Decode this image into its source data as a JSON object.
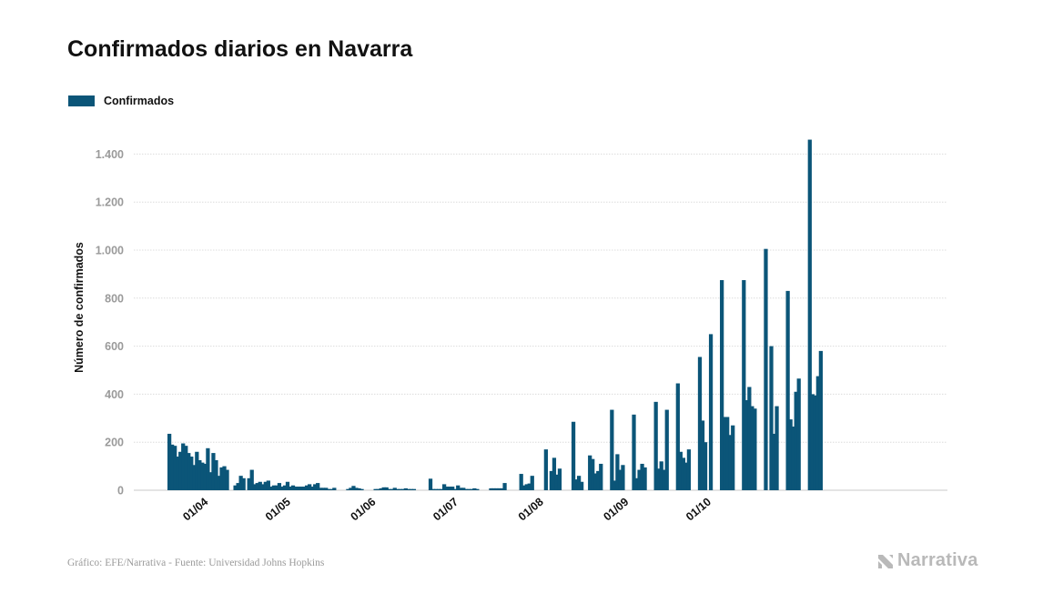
{
  "title": "Confirmados diarios en Navarra",
  "legend": {
    "label": "Confirmados",
    "color": "#0b5578"
  },
  "footer": {
    "source": "Gráfico: EFE/Narrativa - Fuente: Universidad Johns Hopkins",
    "brand": "Narrativa",
    "brand_icon": "narrativa-logo-icon"
  },
  "chart_data": {
    "type": "bar",
    "title": "Confirmados diarios en Navarra",
    "xlabel": "",
    "ylabel": "Número de confirmados",
    "ylim": [
      0,
      1500
    ],
    "yticks": [
      0,
      200,
      400,
      600,
      800,
      1000,
      1200,
      1400
    ],
    "ytick_labels": [
      "0",
      "200",
      "400",
      "600",
      "800",
      "1.000",
      "1.200",
      "1.400"
    ],
    "grid": true,
    "legend_position": "top-left",
    "start_date": "2020-03-19",
    "xticks": [
      {
        "label": "01/04",
        "date": "2020-04-01"
      },
      {
        "label": "01/05",
        "date": "2020-05-01"
      },
      {
        "label": "01/06",
        "date": "2020-06-01"
      },
      {
        "label": "01/07",
        "date": "2020-07-01"
      },
      {
        "label": "01/08",
        "date": "2020-08-01"
      },
      {
        "label": "01/09",
        "date": "2020-09-01"
      },
      {
        "label": "01/10",
        "date": "2020-10-01"
      }
    ],
    "series": [
      {
        "name": "Confirmados",
        "color": "#0b5578",
        "values": [
          235,
          190,
          185,
          140,
          160,
          195,
          185,
          155,
          140,
          105,
          160,
          125,
          115,
          110,
          175,
          75,
          155,
          125,
          60,
          95,
          100,
          85,
          0,
          0,
          20,
          30,
          60,
          50,
          0,
          50,
          85,
          25,
          30,
          35,
          25,
          35,
          40,
          15,
          20,
          20,
          30,
          15,
          20,
          35,
          15,
          20,
          15,
          15,
          15,
          15,
          20,
          25,
          15,
          25,
          30,
          10,
          10,
          10,
          5,
          5,
          10,
          0,
          0,
          0,
          0,
          5,
          10,
          18,
          10,
          8,
          5,
          0,
          0,
          0,
          0,
          5,
          5,
          8,
          12,
          12,
          5,
          5,
          10,
          5,
          5,
          5,
          8,
          5,
          5,
          5,
          0,
          0,
          0,
          0,
          0,
          48,
          5,
          5,
          5,
          5,
          25,
          15,
          15,
          15,
          5,
          20,
          10,
          10,
          5,
          5,
          5,
          8,
          5,
          0,
          0,
          0,
          0,
          8,
          8,
          8,
          8,
          8,
          30,
          0,
          0,
          0,
          0,
          0,
          68,
          20,
          25,
          28,
          60,
          0,
          0,
          0,
          0,
          170,
          0,
          80,
          135,
          65,
          90,
          0,
          0,
          0,
          0,
          285,
          45,
          60,
          35,
          0,
          0,
          145,
          130,
          70,
          80,
          110,
          0,
          0,
          0,
          335,
          40,
          150,
          85,
          105,
          0,
          0,
          0,
          315,
          50,
          85,
          110,
          95,
          0,
          0,
          0,
          368,
          90,
          120,
          85,
          335,
          0,
          0,
          0,
          445,
          160,
          135,
          115,
          170,
          0,
          0,
          0,
          555,
          290,
          200,
          0,
          650,
          0,
          0,
          0,
          875,
          305,
          305,
          230,
          270,
          0,
          0,
          0,
          875,
          375,
          430,
          350,
          340,
          0,
          0,
          0,
          1005,
          0,
          600,
          235,
          350,
          0,
          0,
          0,
          830,
          295,
          265,
          410,
          465,
          0,
          0,
          0,
          1460,
          400,
          395,
          475,
          580
        ]
      }
    ]
  }
}
